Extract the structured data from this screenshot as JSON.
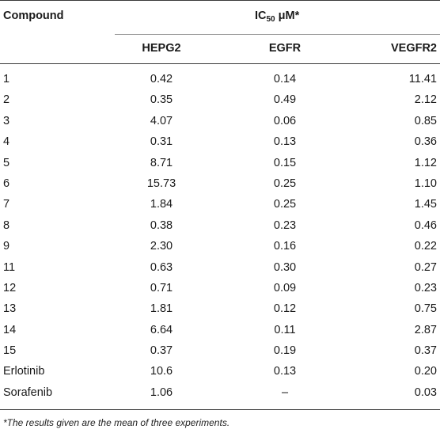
{
  "table": {
    "header": {
      "compound": "Compound",
      "ic50_prefix": "IC",
      "ic50_sub": "50",
      "ic50_suffix": " μM*",
      "columns": [
        "HEPG2",
        "EGFR",
        "VEGFR2"
      ]
    },
    "rows": [
      [
        "1",
        "0.42",
        "0.14",
        "11.41"
      ],
      [
        "2",
        "0.35",
        "0.49",
        "2.12"
      ],
      [
        "3",
        "4.07",
        "0.06",
        "0.85"
      ],
      [
        "4",
        "0.31",
        "0.13",
        "0.36"
      ],
      [
        "5",
        "8.71",
        "0.15",
        "1.12"
      ],
      [
        "6",
        "15.73",
        "0.25",
        "1.10"
      ],
      [
        "7",
        "1.84",
        "0.25",
        "1.45"
      ],
      [
        "8",
        "0.38",
        "0.23",
        "0.46"
      ],
      [
        "9",
        "2.30",
        "0.16",
        "0.22"
      ],
      [
        "11",
        "0.63",
        "0.30",
        "0.27"
      ],
      [
        "12",
        "0.71",
        "0.09",
        "0.23"
      ],
      [
        "13",
        "1.81",
        "0.12",
        "0.75"
      ],
      [
        "14",
        "6.64",
        "0.11",
        "2.87"
      ],
      [
        "15",
        "0.37",
        "0.19",
        "0.37"
      ],
      [
        "Erlotinib",
        "10.6",
        "0.13",
        "0.20"
      ],
      [
        "Sorafenib",
        "1.06",
        "–",
        "0.03"
      ]
    ],
    "footnote": "*The results given are the mean of three experiments."
  }
}
